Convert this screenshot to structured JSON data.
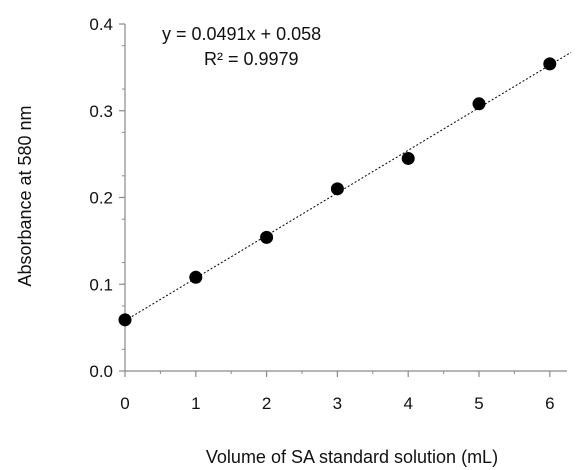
{
  "chart_data": {
    "type": "scatter",
    "title": "",
    "xlabel": "Volume of SA standard solution (mL)",
    "ylabel": "Absorbance at 580 nm",
    "xlim": [
      0,
      6.3
    ],
    "ylim": [
      0,
      0.4
    ],
    "x_ticks": [
      0,
      1,
      2,
      3,
      4,
      5,
      6
    ],
    "x_tick_labels": [
      "0",
      "1",
      "2",
      "3",
      "4",
      "5",
      "6"
    ],
    "y_ticks": [
      0,
      0.1,
      0.2,
      0.3,
      0.4
    ],
    "y_tick_labels": [
      "0.0",
      "0.1",
      "0.2",
      "0.3",
      "0.4"
    ],
    "grid": false,
    "legend": "none",
    "series": [
      {
        "x": [
          0,
          1,
          2,
          3,
          4,
          5,
          6
        ],
        "y": [
          0.059,
          0.108,
          0.154,
          0.21,
          0.245,
          0.308,
          0.354
        ],
        "marker_color": "#000000"
      }
    ],
    "trendline": {
      "slope": 0.0491,
      "intercept": 0.058,
      "style": "dotted",
      "color": "#000000",
      "x_range": [
        0,
        6.3
      ]
    },
    "annotations": {
      "equation": "y = 0.0491x + 0.058",
      "r_squared": "R² = 0.9979"
    }
  }
}
